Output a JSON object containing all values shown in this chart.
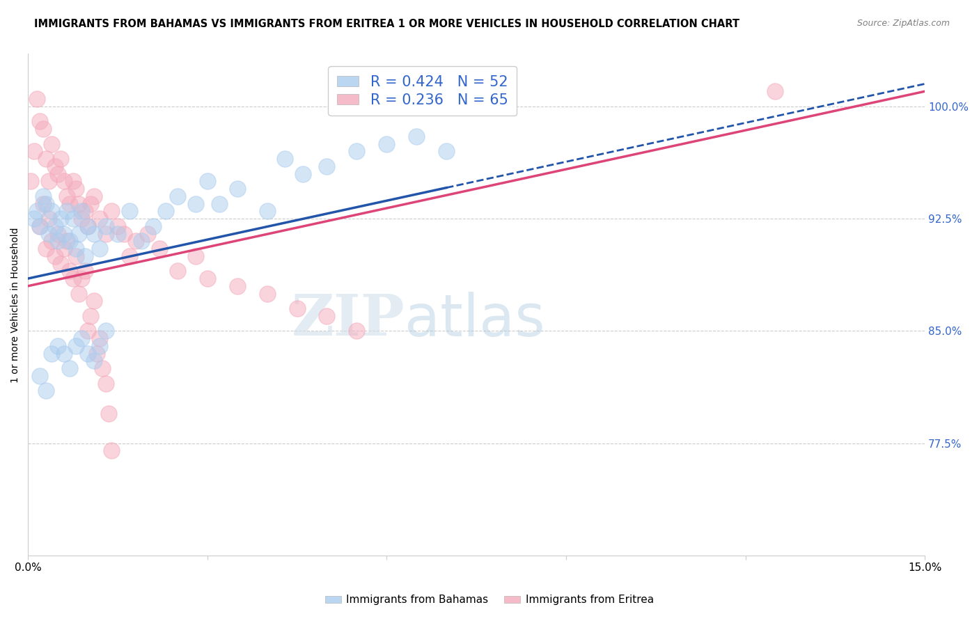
{
  "title": "IMMIGRANTS FROM BAHAMAS VS IMMIGRANTS FROM ERITREA 1 OR MORE VEHICLES IN HOUSEHOLD CORRELATION CHART",
  "source": "Source: ZipAtlas.com",
  "ylabel": "1 or more Vehicles in Household",
  "xlim": [
    0.0,
    15.0
  ],
  "ylim": [
    70.0,
    103.5
  ],
  "y_ticks_right": [
    77.5,
    85.0,
    92.5,
    100.0
  ],
  "y_tick_labels_right": [
    "77.5%",
    "85.0%",
    "92.5%",
    "100.0%"
  ],
  "legend_R_bahamas": "R = 0.424",
  "legend_N_bahamas": "N = 52",
  "legend_R_eritrea": "R = 0.236",
  "legend_N_eritrea": "N = 65",
  "color_bahamas": "#aaccee",
  "color_eritrea": "#f4aabb",
  "color_trendline_bahamas": "#2255aa",
  "color_trendline_eritrea": "#dd4477",
  "color_axis_labels": "#3366cc",
  "bahamas_x": [
    0.1,
    0.15,
    0.2,
    0.25,
    0.3,
    0.35,
    0.4,
    0.45,
    0.5,
    0.55,
    0.6,
    0.65,
    0.7,
    0.75,
    0.8,
    0.85,
    0.9,
    0.95,
    1.0,
    1.1,
    1.2,
    1.3,
    1.5,
    1.7,
    1.9,
    2.1,
    2.3,
    2.5,
    2.8,
    3.0,
    3.2,
    3.5,
    4.0,
    4.3,
    4.6,
    5.0,
    5.5,
    6.0,
    6.5,
    7.0,
    0.2,
    0.3,
    0.4,
    0.5,
    0.6,
    0.7,
    0.8,
    0.9,
    1.0,
    1.1,
    1.2,
    1.3
  ],
  "bahamas_y": [
    92.5,
    93.0,
    92.0,
    94.0,
    93.5,
    91.5,
    93.0,
    92.0,
    91.0,
    92.5,
    91.5,
    93.0,
    91.0,
    92.5,
    90.5,
    91.5,
    93.0,
    90.0,
    92.0,
    91.5,
    90.5,
    92.0,
    91.5,
    93.0,
    91.0,
    92.0,
    93.0,
    94.0,
    93.5,
    95.0,
    93.5,
    94.5,
    93.0,
    96.5,
    95.5,
    96.0,
    97.0,
    97.5,
    98.0,
    97.0,
    82.0,
    81.0,
    83.5,
    84.0,
    83.5,
    82.5,
    84.0,
    84.5,
    83.5,
    83.0,
    84.0,
    85.0
  ],
  "eritrea_x": [
    0.05,
    0.1,
    0.15,
    0.2,
    0.25,
    0.3,
    0.35,
    0.4,
    0.45,
    0.5,
    0.55,
    0.6,
    0.65,
    0.7,
    0.75,
    0.8,
    0.85,
    0.9,
    0.95,
    1.0,
    1.05,
    1.1,
    1.2,
    1.3,
    1.4,
    1.5,
    1.6,
    1.7,
    1.8,
    2.0,
    2.2,
    2.5,
    2.8,
    3.0,
    3.5,
    4.0,
    4.5,
    5.0,
    5.5,
    0.2,
    0.25,
    0.3,
    0.35,
    0.4,
    0.45,
    0.5,
    0.55,
    0.6,
    0.65,
    0.7,
    0.75,
    0.8,
    0.85,
    0.9,
    0.95,
    1.0,
    1.05,
    1.1,
    1.15,
    1.2,
    1.25,
    1.3,
    1.35,
    1.4,
    12.5
  ],
  "eritrea_y": [
    95.0,
    97.0,
    100.5,
    99.0,
    98.5,
    96.5,
    95.0,
    97.5,
    96.0,
    95.5,
    96.5,
    95.0,
    94.0,
    93.5,
    95.0,
    94.5,
    93.5,
    92.5,
    93.0,
    92.0,
    93.5,
    94.0,
    92.5,
    91.5,
    93.0,
    92.0,
    91.5,
    90.0,
    91.0,
    91.5,
    90.5,
    89.0,
    90.0,
    88.5,
    88.0,
    87.5,
    86.5,
    86.0,
    85.0,
    92.0,
    93.5,
    90.5,
    92.5,
    91.0,
    90.0,
    91.5,
    89.5,
    90.5,
    91.0,
    89.0,
    88.5,
    90.0,
    87.5,
    88.5,
    89.0,
    85.0,
    86.0,
    87.0,
    83.5,
    84.5,
    82.5,
    81.5,
    79.5,
    77.0,
    101.0
  ],
  "trendline_bah_x0": 0.0,
  "trendline_bah_y0": 88.5,
  "trendline_bah_x1": 15.0,
  "trendline_bah_y1": 101.5,
  "trendline_bah_solid_end": 7.0,
  "trendline_eri_x0": 0.0,
  "trendline_eri_y0": 88.0,
  "trendline_eri_x1": 15.0,
  "trendline_eri_y1": 101.0
}
